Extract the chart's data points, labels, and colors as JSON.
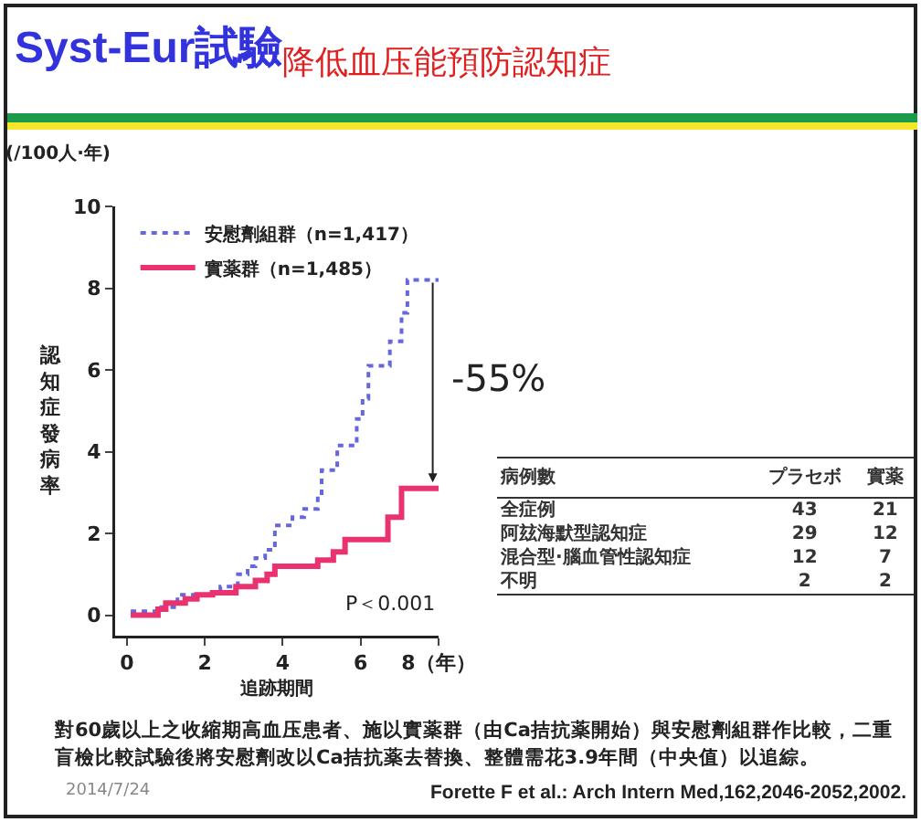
{
  "chart_data": {
    "type": "step",
    "title": "Syst-Eur試驗",
    "subtitle": "降低血压能預防認知症",
    "xlabel": "追跡期間",
    "ylabel": "認知症發病率",
    "xlim": [
      -0.3,
      8
    ],
    "xticks": [
      0,
      2,
      4,
      6,
      {
        "value": 8,
        "label": "8（年）"
      }
    ],
    "ylim": [
      -0.5,
      10
    ],
    "yticks": [
      0,
      2,
      4,
      6,
      8,
      10
    ],
    "grid": false,
    "legend": "top left",
    "marker": "none",
    "series": [
      {
        "name": "安慰劑組群（n=1,417）",
        "color": "#6666dd",
        "line_style": "dotted",
        "x": [
          0.1,
          0.8,
          1.3,
          2.05,
          2.4,
          2.85,
          3.1,
          3.3,
          3.55,
          3.8,
          4.25,
          4.55,
          4.9,
          5.0,
          5.4,
          5.9,
          6.05,
          6.2,
          6.75,
          7.05,
          7.2,
          8.0
        ],
        "values": [
          0.1,
          0.2,
          0.5,
          0.55,
          0.7,
          1.0,
          1.2,
          1.4,
          1.6,
          2.2,
          2.4,
          2.6,
          2.9,
          3.55,
          4.15,
          4.8,
          5.3,
          6.1,
          6.7,
          7.4,
          8.2,
          8.2
        ]
      },
      {
        "name": "實薬群（n=1,485）",
        "color": "#e8336e",
        "line_style": "solid",
        "x": [
          0.1,
          0.8,
          1.0,
          1.5,
          1.8,
          2.2,
          2.8,
          3.3,
          3.6,
          3.8,
          4.9,
          5.3,
          5.6,
          6.7,
          7.05,
          8.0
        ],
        "values": [
          0,
          0.15,
          0.3,
          0.4,
          0.5,
          0.55,
          0.7,
          0.85,
          1.0,
          1.2,
          1.35,
          1.55,
          1.85,
          2.4,
          3.1,
          3.1
        ]
      }
    ],
    "annotations": [
      "(/100人·年)",
      "-55%",
      "P＜0.001",
      "病例數",
      "プラセボ",
      "實薬",
      "全症例",
      "43",
      "21",
      "阿玆海默型認知症",
      "29",
      "12",
      "混合型·腦血管性認知症",
      "12",
      "7",
      "不明",
      "2",
      "2",
      "對60歲以上之收縮期高血压患者、施以實薬群（由Ca拮抗薬開始）與安慰劑組群作比較，二重盲檢比較試驗後將安慰劑改以Ca拮抗薬去替換、整體需花3.9年間（中央值）以追綜。",
      "2014/7/24",
      "Forette F et al.: Arch Intern Med,162,2046-2052,2002."
    ]
  }
}
